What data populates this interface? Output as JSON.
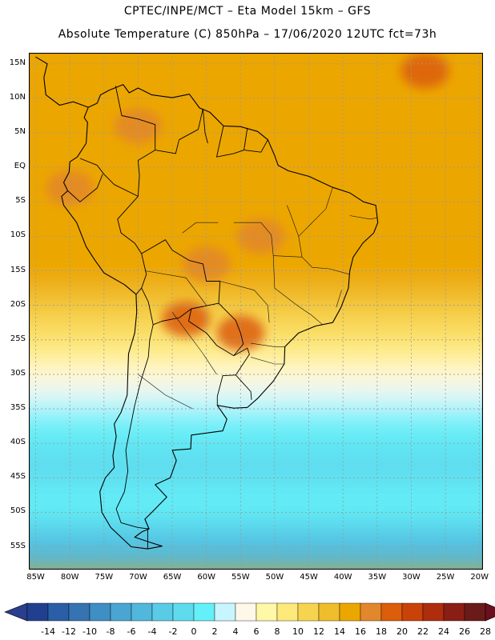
{
  "title_line1": "CPTEC/INPE/MCT –  Eta Model 15km – GFS",
  "title_line2": "Absolute Temperature (C) 850hPa – 17/06/2020 12UTC fct=73h",
  "map": {
    "lon_range": [
      -86,
      -19.5
    ],
    "lat_range": [
      -58.3,
      16.6
    ],
    "lat_ticks": [
      {
        "value": 15,
        "label": "15N"
      },
      {
        "value": 10,
        "label": "10N"
      },
      {
        "value": 5,
        "label": "5N"
      },
      {
        "value": 0,
        "label": "EQ"
      },
      {
        "value": -5,
        "label": "5S"
      },
      {
        "value": -10,
        "label": "10S"
      },
      {
        "value": -15,
        "label": "15S"
      },
      {
        "value": -20,
        "label": "20S"
      },
      {
        "value": -25,
        "label": "25S"
      },
      {
        "value": -30,
        "label": "30S"
      },
      {
        "value": -35,
        "label": "35S"
      },
      {
        "value": -40,
        "label": "40S"
      },
      {
        "value": -45,
        "label": "45S"
      },
      {
        "value": -50,
        "label": "50S"
      },
      {
        "value": -55,
        "label": "55S"
      }
    ],
    "lon_ticks": [
      {
        "value": -85,
        "label": "85W"
      },
      {
        "value": -80,
        "label": "80W"
      },
      {
        "value": -75,
        "label": "75W"
      },
      {
        "value": -70,
        "label": "70W"
      },
      {
        "value": -65,
        "label": "65W"
      },
      {
        "value": -60,
        "label": "60W"
      },
      {
        "value": -55,
        "label": "55W"
      },
      {
        "value": -50,
        "label": "50W"
      },
      {
        "value": -45,
        "label": "45W"
      },
      {
        "value": -40,
        "label": "40W"
      },
      {
        "value": -35,
        "label": "35W"
      },
      {
        "value": -30,
        "label": "30W"
      },
      {
        "value": -25,
        "label": "25W"
      },
      {
        "value": -20,
        "label": "20W"
      }
    ],
    "temperature_bands": [
      {
        "lat_max": 16.6,
        "lat_min": 2,
        "temp": 17
      },
      {
        "lat_max": 2,
        "lat_min": -12,
        "temp": 17
      },
      {
        "lat_max": -12,
        "lat_min": -18,
        "temp": 16
      },
      {
        "lat_max": -18,
        "lat_min": -21,
        "temp": 14
      },
      {
        "lat_max": -21,
        "lat_min": -25,
        "temp": 12
      },
      {
        "lat_max": -25,
        "lat_min": -28.5,
        "temp": 10
      },
      {
        "lat_max": -28.5,
        "lat_min": -30,
        "temp": 9
      },
      {
        "lat_max": -30,
        "lat_min": -33.5,
        "temp": 7
      },
      {
        "lat_max": -33.5,
        "lat_min": -36,
        "temp": 5
      },
      {
        "lat_max": -36,
        "lat_min": -41,
        "temp": 3
      },
      {
        "lat_max": -41,
        "lat_min": -47,
        "temp": 1
      },
      {
        "lat_max": -47,
        "lat_min": -52,
        "temp": 3
      },
      {
        "lat_max": -52,
        "lat_min": -55,
        "temp": -1
      },
      {
        "lat_max": -55,
        "lat_min": -58.3,
        "temp": -3
      }
    ],
    "warm_patches": [
      {
        "lon": -70,
        "lat": 6,
        "temp": 19
      },
      {
        "lon": -52,
        "lat": -10,
        "temp": 19
      },
      {
        "lon": -60,
        "lat": -14,
        "temp": 19
      },
      {
        "lon": -63,
        "lat": -22,
        "temp": 20
      },
      {
        "lon": -55,
        "lat": -24,
        "temp": 21
      },
      {
        "lon": -28,
        "lat": 14,
        "temp": 20
      },
      {
        "lon": -80,
        "lat": -3,
        "temp": 18
      }
    ],
    "coastline": [
      [
        -77.3,
        8.7
      ],
      [
        -76,
        9.3
      ],
      [
        -75.5,
        10.5
      ],
      [
        -74.2,
        11.2
      ],
      [
        -72.2,
        12
      ],
      [
        -71.3,
        10.8
      ],
      [
        -70,
        11.5
      ],
      [
        -68,
        10.5
      ],
      [
        -65,
        10.1
      ],
      [
        -62.5,
        10.6
      ],
      [
        -61,
        8.6
      ],
      [
        -59.5,
        8
      ],
      [
        -57.5,
        6
      ],
      [
        -55,
        5.9
      ],
      [
        -52.5,
        5.2
      ],
      [
        -51,
        4
      ],
      [
        -50,
        1.7
      ],
      [
        -49.5,
        0.3
      ],
      [
        -48,
        -0.5
      ],
      [
        -45,
        -1.3
      ],
      [
        -41.5,
        -2.9
      ],
      [
        -39,
        -3.7
      ],
      [
        -37,
        -5
      ],
      [
        -35.2,
        -5.5
      ],
      [
        -34.9,
        -8
      ],
      [
        -35.5,
        -9.5
      ],
      [
        -37.1,
        -11
      ],
      [
        -38.5,
        -13
      ],
      [
        -39,
        -15
      ],
      [
        -39.2,
        -17.5
      ],
      [
        -40.3,
        -20.3
      ],
      [
        -41.5,
        -22.5
      ],
      [
        -44,
        -23
      ],
      [
        -46.5,
        -24
      ],
      [
        -48.5,
        -26
      ],
      [
        -48.6,
        -28.5
      ],
      [
        -50.2,
        -31
      ],
      [
        -52.5,
        -33.5
      ],
      [
        -54,
        -34.8
      ],
      [
        -56,
        -34.9
      ],
      [
        -58.4,
        -34.5
      ],
      [
        -57,
        -36.5
      ],
      [
        -57.6,
        -38.2
      ],
      [
        -62.2,
        -38.8
      ],
      [
        -62.3,
        -40.8
      ],
      [
        -65,
        -41
      ],
      [
        -64.4,
        -42.5
      ],
      [
        -65.3,
        -45
      ],
      [
        -67.5,
        -46
      ],
      [
        -65.8,
        -47.8
      ],
      [
        -67.8,
        -49.8
      ],
      [
        -69,
        -51
      ],
      [
        -68.4,
        -52.4
      ],
      [
        -69.4,
        -52.8
      ],
      [
        -70.5,
        -53.6
      ],
      [
        -68.4,
        -54.3
      ],
      [
        -66.5,
        -54.9
      ],
      [
        -68.6,
        -55.3
      ],
      [
        -71,
        -55
      ],
      [
        -74,
        -52.2
      ],
      [
        -75.3,
        -50
      ],
      [
        -75.6,
        -47
      ],
      [
        -74.8,
        -45
      ],
      [
        -73.5,
        -43.5
      ],
      [
        -73.7,
        -41.8
      ],
      [
        -73.2,
        -39
      ],
      [
        -73.5,
        -37.2
      ],
      [
        -72.5,
        -35.5
      ],
      [
        -71.6,
        -33
      ],
      [
        -71.5,
        -30
      ],
      [
        -71.4,
        -27
      ],
      [
        -70.5,
        -24
      ],
      [
        -70.2,
        -21
      ],
      [
        -70.3,
        -18.4
      ],
      [
        -72,
        -17
      ],
      [
        -75,
        -15.3
      ],
      [
        -76.3,
        -13.5
      ],
      [
        -77.6,
        -11.5
      ],
      [
        -79,
        -8
      ],
      [
        -80.9,
        -5.5
      ],
      [
        -81.2,
        -4.2
      ],
      [
        -80.3,
        -3.4
      ],
      [
        -80.9,
        -2.2
      ],
      [
        -80.1,
        -0.7
      ],
      [
        -80,
        0.8
      ],
      [
        -78.9,
        1.5
      ],
      [
        -77.6,
        3.5
      ],
      [
        -77.4,
        6.5
      ],
      [
        -77.9,
        7.2
      ],
      [
        -77.3,
        8.7
      ]
    ],
    "central_america": [
      [
        -77.3,
        8.7
      ],
      [
        -79.5,
        9.5
      ],
      [
        -81.5,
        9
      ],
      [
        -83.5,
        10.5
      ],
      [
        -83.8,
        13
      ],
      [
        -83.3,
        15
      ],
      [
        -85,
        16
      ]
    ],
    "borders": [
      [
        [
          -73.3,
          11.8
        ],
        [
          -72.4,
          7.5
        ],
        [
          -70,
          7
        ],
        [
          -67.5,
          6.2
        ],
        [
          -67.5,
          2.5
        ],
        [
          -70,
          1
        ],
        [
          -69.8,
          -1.2
        ],
        [
          -70,
          -4.2
        ]
      ],
      [
        [
          -78.5,
          1.3
        ],
        [
          -76,
          0.3
        ],
        [
          -75,
          -1
        ],
        [
          -73.5,
          -2.5
        ],
        [
          -70,
          -4.2
        ]
      ],
      [
        [
          -80.3,
          -3.4
        ],
        [
          -78.5,
          -5
        ],
        [
          -76,
          -3
        ],
        [
          -75.2,
          -1
        ]
      ],
      [
        [
          -60.5,
          8.5
        ],
        [
          -61.2,
          5.5
        ],
        [
          -64,
          4
        ],
        [
          -64.5,
          2
        ],
        [
          -67.5,
          2.5
        ]
      ],
      [
        [
          -57.5,
          6
        ],
        [
          -58.5,
          1.5
        ],
        [
          -56,
          2
        ]
      ],
      [
        [
          -54,
          5.7
        ],
        [
          -54.5,
          2.5
        ],
        [
          -52,
          2.2
        ],
        [
          -51,
          4
        ]
      ],
      [
        [
          -56,
          2
        ],
        [
          -54.5,
          2.5
        ]
      ],
      [
        [
          -60.5,
          8.5
        ],
        [
          -60.2,
          5
        ],
        [
          -59.8,
          3.5
        ]
      ],
      [
        [
          -70,
          -4.2
        ],
        [
          -73,
          -7.5
        ],
        [
          -72.5,
          -9.5
        ],
        [
          -70.5,
          -11
        ],
        [
          -69.5,
          -12.5
        ],
        [
          -68.8,
          -15.5
        ],
        [
          -69.5,
          -17.5
        ],
        [
          -70.3,
          -18.4
        ]
      ],
      [
        [
          -69.5,
          -17.5
        ],
        [
          -68.5,
          -19.5
        ],
        [
          -67.8,
          -22.8
        ],
        [
          -68.3,
          -25
        ],
        [
          -68.5,
          -27.5
        ],
        [
          -69.6,
          -31
        ],
        [
          -70.5,
          -34.5
        ],
        [
          -71.2,
          -38
        ],
        [
          -71.8,
          -41
        ],
        [
          -71.5,
          -44
        ],
        [
          -72,
          -47
        ],
        [
          -73.2,
          -49.5
        ],
        [
          -72.5,
          -51.5
        ],
        [
          -70,
          -52.2
        ],
        [
          -68.4,
          -52.4
        ]
      ],
      [
        [
          -69.5,
          -12.5
        ],
        [
          -66,
          -10.5
        ],
        [
          -65,
          -12
        ],
        [
          -62.5,
          -13.5
        ],
        [
          -60.5,
          -14
        ],
        [
          -60,
          -16.5
        ],
        [
          -58,
          -16.5
        ],
        [
          -58.2,
          -19.7
        ],
        [
          -62.2,
          -20.5
        ],
        [
          -64,
          -21.8
        ],
        [
          -66.5,
          -22.3
        ],
        [
          -67.8,
          -22.8
        ]
      ],
      [
        [
          -62.2,
          -20.5
        ],
        [
          -62.6,
          -22.3
        ],
        [
          -60,
          -24
        ],
        [
          -58.5,
          -25.8
        ],
        [
          -56,
          -27.3
        ],
        [
          -54.6,
          -25.6
        ],
        [
          -55,
          -24
        ],
        [
          -55.7,
          -22.2
        ],
        [
          -58.2,
          -19.7
        ]
      ],
      [
        [
          -56,
          -27.3
        ],
        [
          -54,
          -26.2
        ],
        [
          -53.7,
          -27.1
        ],
        [
          -55.7,
          -30.1
        ],
        [
          -57.6,
          -30.2
        ],
        [
          -58.4,
          -33.2
        ],
        [
          -58.4,
          -34.5
        ]
      ],
      [
        [
          -55.7,
          -30.1
        ],
        [
          -53.5,
          -32.5
        ],
        [
          -53.4,
          -33.7
        ]
      ],
      [
        [
          -68.6,
          -52.3
        ],
        [
          -68.6,
          -55.3
        ]
      ]
    ],
    "states": [
      [
        [
          -56,
          -8
        ],
        [
          -52,
          -8
        ],
        [
          -50.5,
          -9.8
        ],
        [
          -50.2,
          -12.8
        ],
        [
          -46,
          -13
        ]
      ],
      [
        [
          -58,
          -16.5
        ],
        [
          -53,
          -17.8
        ],
        [
          -51,
          -20
        ],
        [
          -50.8,
          -22.5
        ]
      ],
      [
        [
          -50.2,
          -12.8
        ],
        [
          -50,
          -17.5
        ],
        [
          -47,
          -19.8
        ],
        [
          -44.5,
          -21.5
        ],
        [
          -43,
          -22.8
        ]
      ],
      [
        [
          -46,
          -13
        ],
        [
          -46.5,
          -10
        ],
        [
          -47.6,
          -7
        ],
        [
          -48.2,
          -5.5
        ]
      ],
      [
        [
          -41.5,
          -2.9
        ],
        [
          -42.5,
          -6
        ],
        [
          -45,
          -8.5
        ],
        [
          -46.5,
          -10
        ]
      ],
      [
        [
          -39,
          -15.5
        ],
        [
          -42,
          -14.7
        ],
        [
          -44.5,
          -14.5
        ],
        [
          -46,
          -13
        ]
      ],
      [
        [
          -40.2,
          -17.8
        ],
        [
          -41,
          -20.3
        ]
      ],
      [
        [
          -63.5,
          -9.5
        ],
        [
          -61.5,
          -8
        ],
        [
          -58.3,
          -8
        ]
      ],
      [
        [
          -53.5,
          -25.5
        ],
        [
          -50,
          -26
        ],
        [
          -48.5,
          -26
        ]
      ],
      [
        [
          -53.5,
          -27.5
        ],
        [
          -50,
          -28.5
        ],
        [
          -48.6,
          -28.5
        ]
      ],
      [
        [
          -69,
          -15
        ],
        [
          -63,
          -16
        ],
        [
          -60,
          -20
        ]
      ],
      [
        [
          -65,
          -21
        ],
        [
          -60.5,
          -27
        ],
        [
          -58.5,
          -30
        ]
      ],
      [
        [
          -70,
          -30
        ],
        [
          -66,
          -33
        ],
        [
          -62,
          -35
        ]
      ],
      [
        [
          -39,
          -7
        ],
        [
          -36,
          -7.5
        ],
        [
          -35,
          -7.3
        ]
      ]
    ]
  },
  "colorbar": {
    "labels": [
      "-14",
      "-12",
      "-10",
      "-8",
      "-6",
      "-4",
      "-2",
      "0",
      "2",
      "4",
      "6",
      "8",
      "10",
      "12",
      "14",
      "16",
      "18",
      "20",
      "22",
      "24",
      "26",
      "28"
    ],
    "under_color": "#2a3d8f",
    "over_color": "#6b0f1e",
    "colors": [
      "#20408f",
      "#2a5ea6",
      "#3573b2",
      "#3f8ec4",
      "#4aa5d2",
      "#51b7dc",
      "#58cbe6",
      "#5fdbee",
      "#63f0f8",
      "#c8f5ff",
      "#fff8e8",
      "#fff8a6",
      "#fee97b",
      "#f7d44f",
      "#f0bd2c",
      "#eca600",
      "#e2872b",
      "#dc5d0a",
      "#c8420a",
      "#ad2d0d",
      "#8b1e14",
      "#6b1a1a"
    ]
  }
}
